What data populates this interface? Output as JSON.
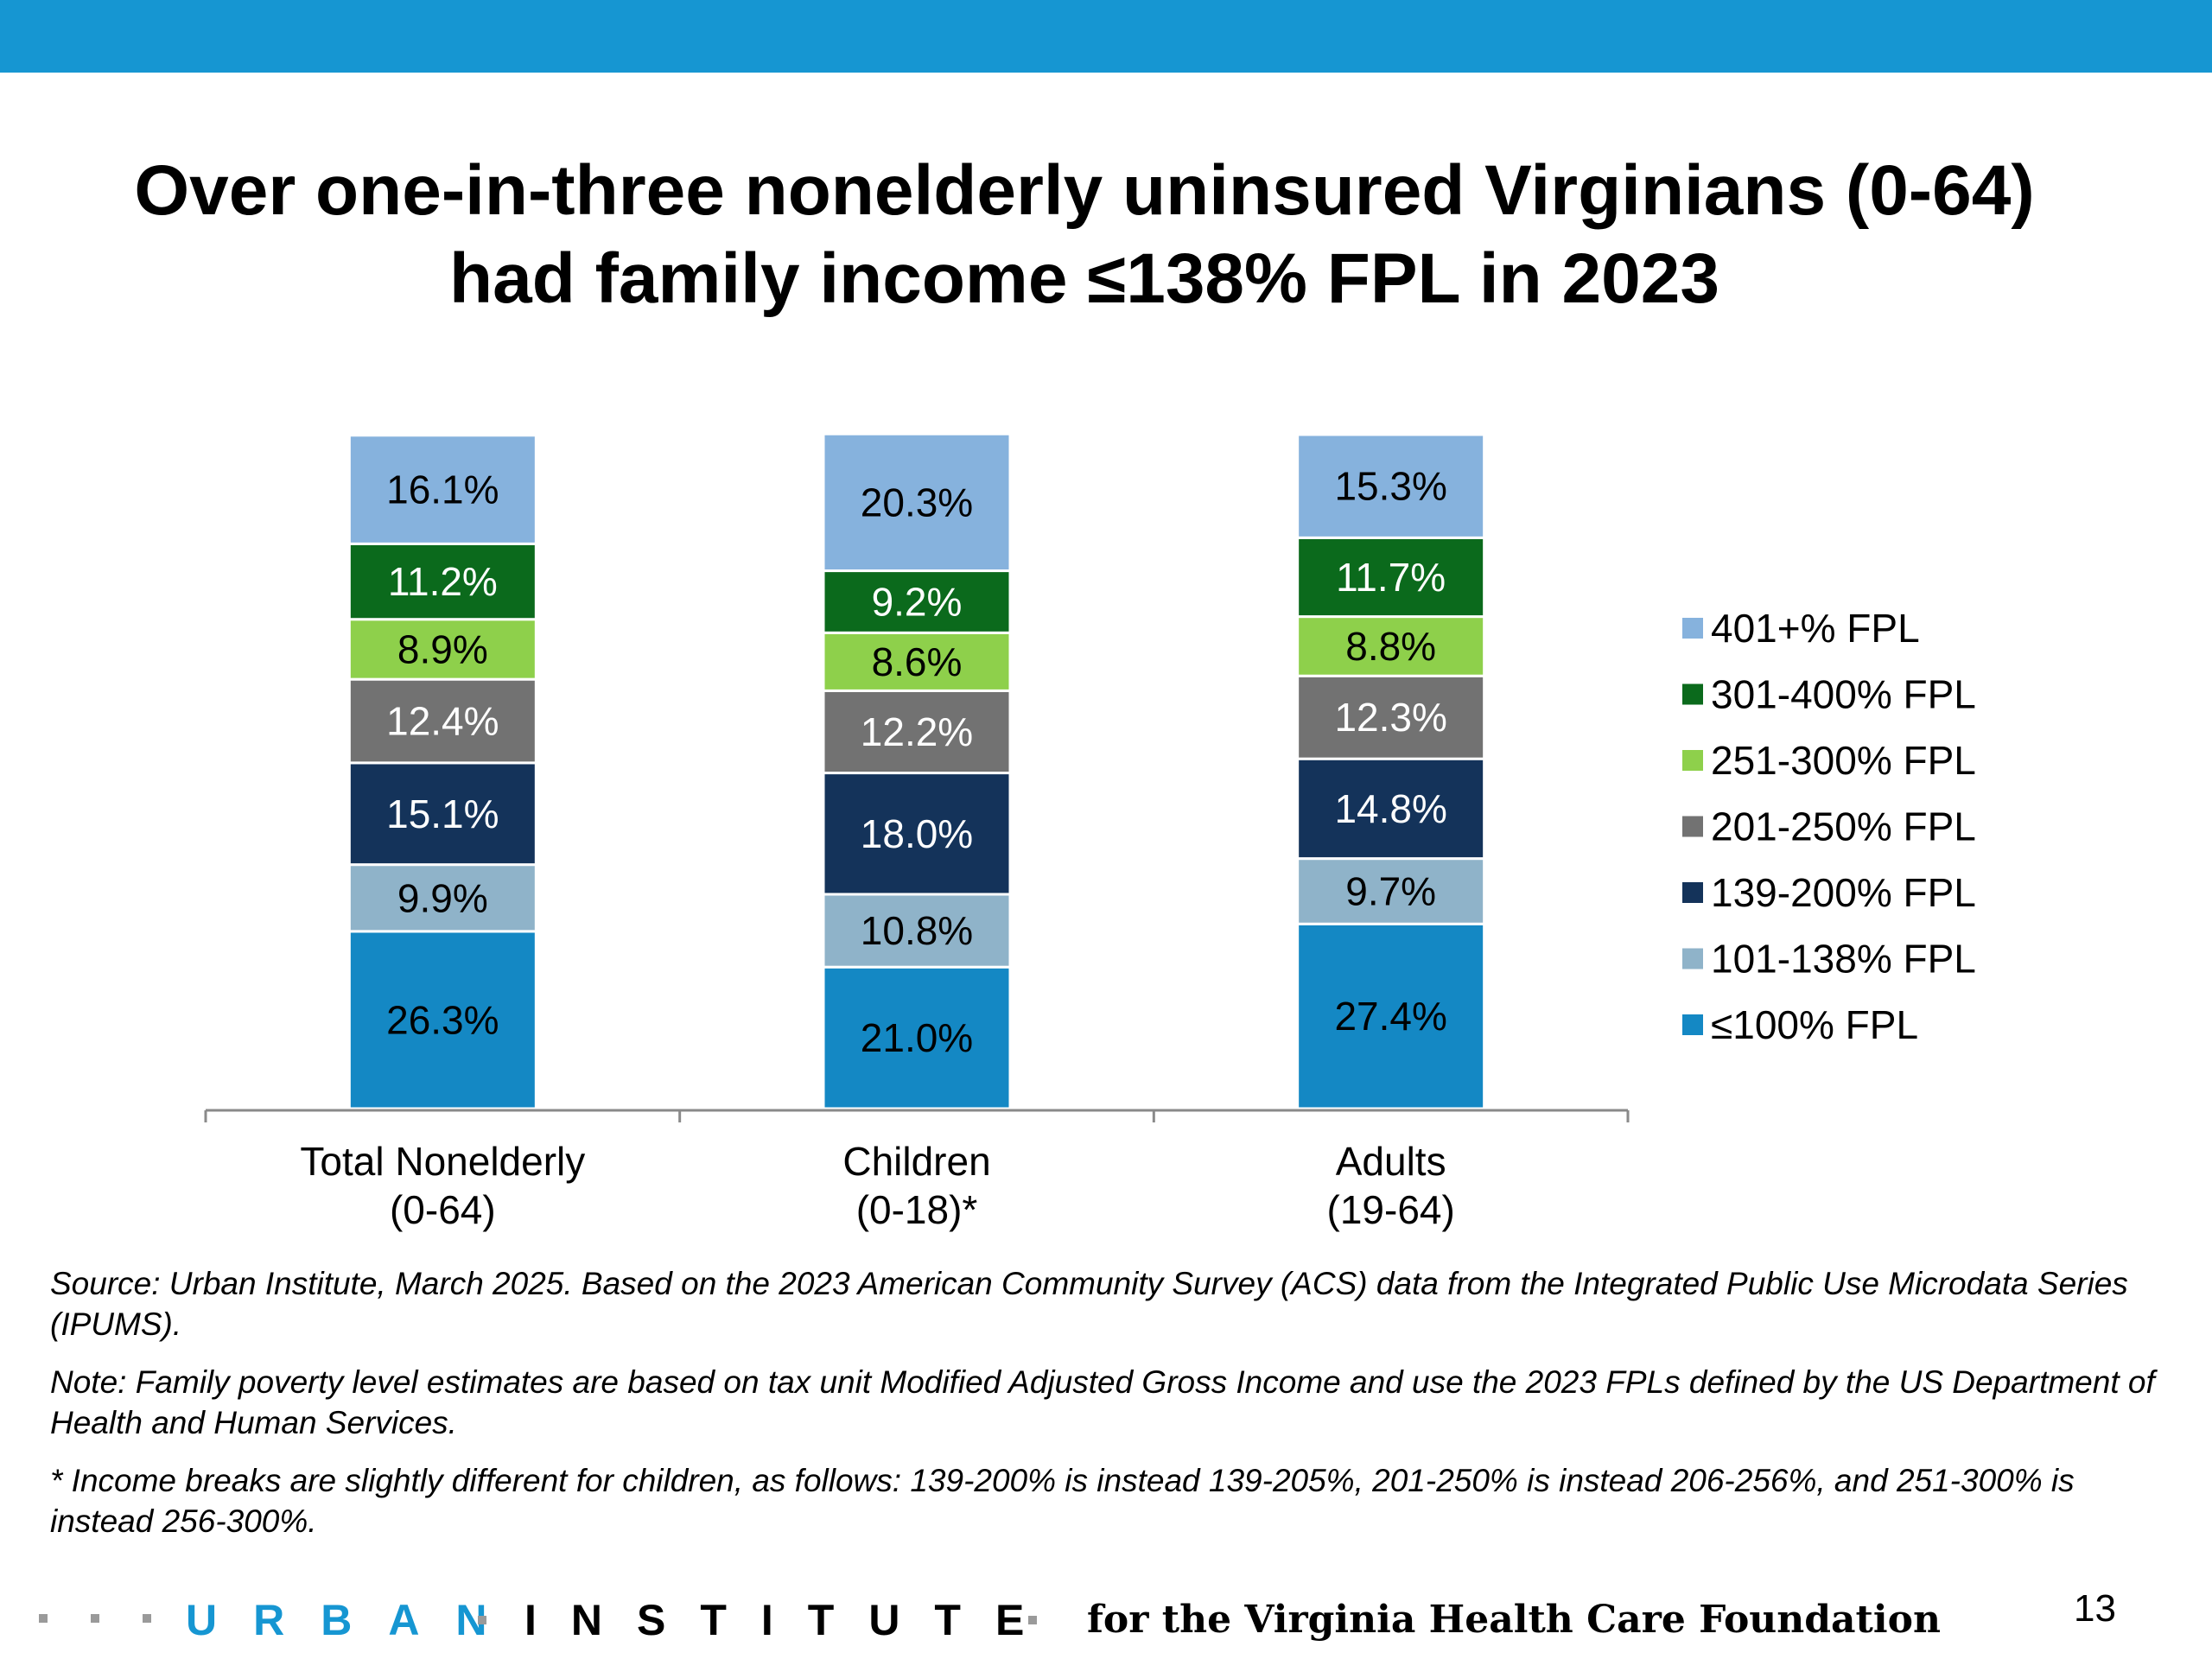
{
  "header": {
    "title_line1": "Over one-in-three nonelderly uninsured Virginians (0-64)",
    "title_line2": "had family income ≤138% FPL in 2023"
  },
  "chart_data": {
    "type": "bar",
    "stacked": true,
    "categories": [
      [
        "Total Nonelderly",
        "(0-64)"
      ],
      [
        "Children",
        "(0-18)*"
      ],
      [
        "Adults",
        "(19-64)"
      ]
    ],
    "series": [
      {
        "name": "≤100% FPL",
        "color": "#1488c4",
        "values": [
          26.3,
          21.0,
          27.4
        ],
        "labels": [
          "26.3%",
          "21.0%",
          "27.4%"
        ],
        "label_color": "#000000"
      },
      {
        "name": "101-138% FPL",
        "color": "#8fb3c9",
        "values": [
          9.9,
          10.8,
          9.7
        ],
        "labels": [
          "9.9%",
          "10.8%",
          "9.7%"
        ],
        "label_color": "#000000"
      },
      {
        "name": "139-200% FPL",
        "color": "#14335a",
        "values": [
          15.1,
          18.0,
          14.8
        ],
        "labels": [
          "15.1%",
          "18.0%",
          "14.8%"
        ],
        "label_color": "#ffffff"
      },
      {
        "name": "201-250% FPL",
        "color": "#727272",
        "values": [
          12.4,
          12.2,
          12.3
        ],
        "labels": [
          "12.4%",
          "12.2%",
          "12.3%"
        ],
        "label_color": "#ffffff"
      },
      {
        "name": "251-300% FPL",
        "color": "#8ed04b",
        "values": [
          8.9,
          8.6,
          8.8
        ],
        "labels": [
          "8.9%",
          "8.6%",
          "8.8%"
        ],
        "label_color": "#000000"
      },
      {
        "name": "301-400% FPL",
        "color": "#0b6a1c",
        "values": [
          11.2,
          9.2,
          11.7
        ],
        "labels": [
          "11.2%",
          "9.2%",
          "11.7%"
        ],
        "label_color": "#ffffff"
      },
      {
        "name": "401+% FPL",
        "color": "#86b2dd",
        "values": [
          16.1,
          20.3,
          15.3
        ],
        "labels": [
          "16.1%",
          "20.3%",
          "15.3%"
        ],
        "label_color": "#000000"
      }
    ],
    "ylim": [
      0,
      100
    ],
    "grid": false,
    "legend_position": "right",
    "legend_order": "reverse"
  },
  "notes": {
    "source": "Source: Urban Institute, March 2025. Based on the 2023 American Community Survey (ACS) data from the Integrated Public Use Microdata Series (IPUMS).",
    "note": "Note: Family poverty level estimates are based on tax unit Modified Adjusted Gross Income and use the 2023 FPLs defined by the US Department of Health and Human Services.",
    "asterisk": "* Income breaks are slightly different for children, as follows: 139-200% is instead 139-205%, 201-250% is instead 206-256%, and 251-300% is instead 256-300%."
  },
  "footer": {
    "logo_urban": "URBAN",
    "logo_institute": "INSTITUTE",
    "sponsor": "for the Virginia Health Care Foundation",
    "page_number": "13"
  },
  "colors": {
    "top_bar": "#1696d2",
    "urban_blue": "#1696d2"
  }
}
